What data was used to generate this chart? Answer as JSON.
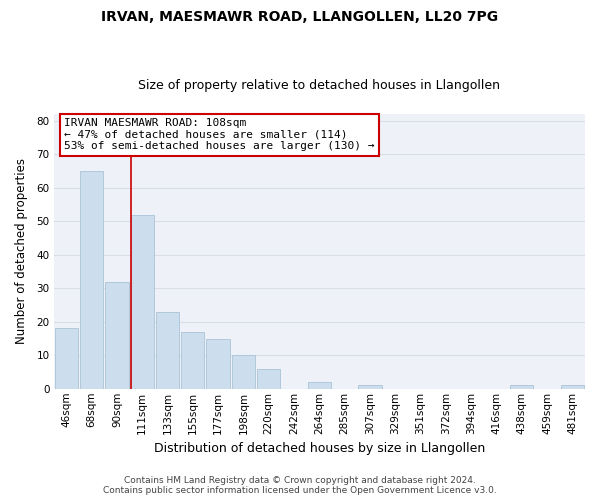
{
  "title": "IRVAN, MAESMAWR ROAD, LLANGOLLEN, LL20 7PG",
  "subtitle": "Size of property relative to detached houses in Llangollen",
  "xlabel": "Distribution of detached houses by size in Llangollen",
  "ylabel": "Number of detached properties",
  "bar_labels": [
    "46sqm",
    "68sqm",
    "90sqm",
    "111sqm",
    "133sqm",
    "155sqm",
    "177sqm",
    "198sqm",
    "220sqm",
    "242sqm",
    "264sqm",
    "285sqm",
    "307sqm",
    "329sqm",
    "351sqm",
    "372sqm",
    "394sqm",
    "416sqm",
    "438sqm",
    "459sqm",
    "481sqm"
  ],
  "bar_values": [
    18,
    65,
    32,
    52,
    23,
    17,
    15,
    10,
    6,
    0,
    2,
    0,
    1,
    0,
    0,
    0,
    0,
    0,
    1,
    0,
    1
  ],
  "bar_color": "#ccdded",
  "bar_edge_color": "#aac4d8",
  "vline_color": "#cc0000",
  "annotation_text": "IRVAN MAESMAWR ROAD: 108sqm\n← 47% of detached houses are smaller (114)\n53% of semi-detached houses are larger (130) →",
  "ylim": [
    0,
    82
  ],
  "yticks": [
    0,
    10,
    20,
    30,
    40,
    50,
    60,
    70,
    80
  ],
  "footer_line1": "Contains HM Land Registry data © Crown copyright and database right 2024.",
  "footer_line2": "Contains public sector information licensed under the Open Government Licence v3.0.",
  "grid_color": "#d8dde8",
  "background_color": "#eef2f8",
  "title_fontsize": 10,
  "subtitle_fontsize": 9,
  "xlabel_fontsize": 9,
  "ylabel_fontsize": 8.5,
  "tick_fontsize": 7.5,
  "footer_fontsize": 6.5,
  "ann_fontsize": 8
}
